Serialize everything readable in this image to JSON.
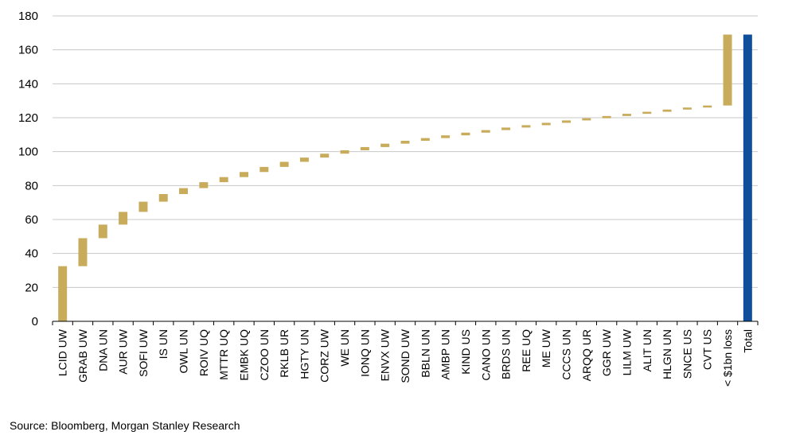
{
  "chart_data": {
    "type": "bar",
    "subtype": "waterfall",
    "title": "",
    "xlabel": "",
    "ylabel": "",
    "ylim": [
      0,
      180
    ],
    "yticks": [
      0,
      20,
      40,
      60,
      80,
      100,
      120,
      140,
      160,
      180
    ],
    "grid": true,
    "legend": "none",
    "colors": {
      "step": "#c8ac5c",
      "total": "#0f4e9a",
      "grid": "#c8c8c8",
      "axis": "#000000"
    },
    "categories": [
      "LCID UW",
      "GRAB UW",
      "DNA UN",
      "AUR UW",
      "SOFI UW",
      "IS UN",
      "OWL UN",
      "ROIV UQ",
      "MTTR UQ",
      "EMBK UQ",
      "CZOO UN",
      "RKLB UR",
      "HGTY UN",
      "CORZ UW",
      "WE UN",
      "IONQ UN",
      "ENVX UW",
      "SOND UW",
      "BBLN UN",
      "AMBP UN",
      "KIND US",
      "CANO UN",
      "BRDS UN",
      "REE UQ",
      "ME UW",
      "CCCS UN",
      "ARQQ UR",
      "GGR UW",
      "LILM UW",
      "ALIT UN",
      "HLGN UN",
      "SNCE US",
      "CVT US",
      "< $1bn loss",
      "Total"
    ],
    "steps": [
      {
        "start": 0,
        "end": 32.5
      },
      {
        "start": 32.5,
        "end": 49
      },
      {
        "start": 49,
        "end": 57
      },
      {
        "start": 57,
        "end": 64.5
      },
      {
        "start": 64.5,
        "end": 70.5
      },
      {
        "start": 70.5,
        "end": 75
      },
      {
        "start": 75,
        "end": 78.5
      },
      {
        "start": 78.5,
        "end": 82
      },
      {
        "start": 82,
        "end": 85
      },
      {
        "start": 85,
        "end": 88
      },
      {
        "start": 88,
        "end": 91
      },
      {
        "start": 91,
        "end": 94
      },
      {
        "start": 94,
        "end": 96.5
      },
      {
        "start": 96.5,
        "end": 98.8
      },
      {
        "start": 98.8,
        "end": 100.8
      },
      {
        "start": 100.8,
        "end": 102.7
      },
      {
        "start": 102.7,
        "end": 104.7
      },
      {
        "start": 104.7,
        "end": 106.4
      },
      {
        "start": 106.4,
        "end": 108
      },
      {
        "start": 108,
        "end": 109.6
      },
      {
        "start": 109.6,
        "end": 111.2
      },
      {
        "start": 111.2,
        "end": 112.7
      },
      {
        "start": 112.7,
        "end": 114.2
      },
      {
        "start": 114.2,
        "end": 115.6
      },
      {
        "start": 115.6,
        "end": 117
      },
      {
        "start": 117,
        "end": 118.4
      },
      {
        "start": 118.4,
        "end": 119.7
      },
      {
        "start": 119.7,
        "end": 121
      },
      {
        "start": 121,
        "end": 122.3
      },
      {
        "start": 122.3,
        "end": 123.5
      },
      {
        "start": 123.5,
        "end": 124.8
      },
      {
        "start": 124.8,
        "end": 126
      },
      {
        "start": 126,
        "end": 127.2
      },
      {
        "start": 127.2,
        "end": 169
      }
    ],
    "total": 169
  },
  "source_text": "Source: Bloomberg, Morgan Stanley Research"
}
